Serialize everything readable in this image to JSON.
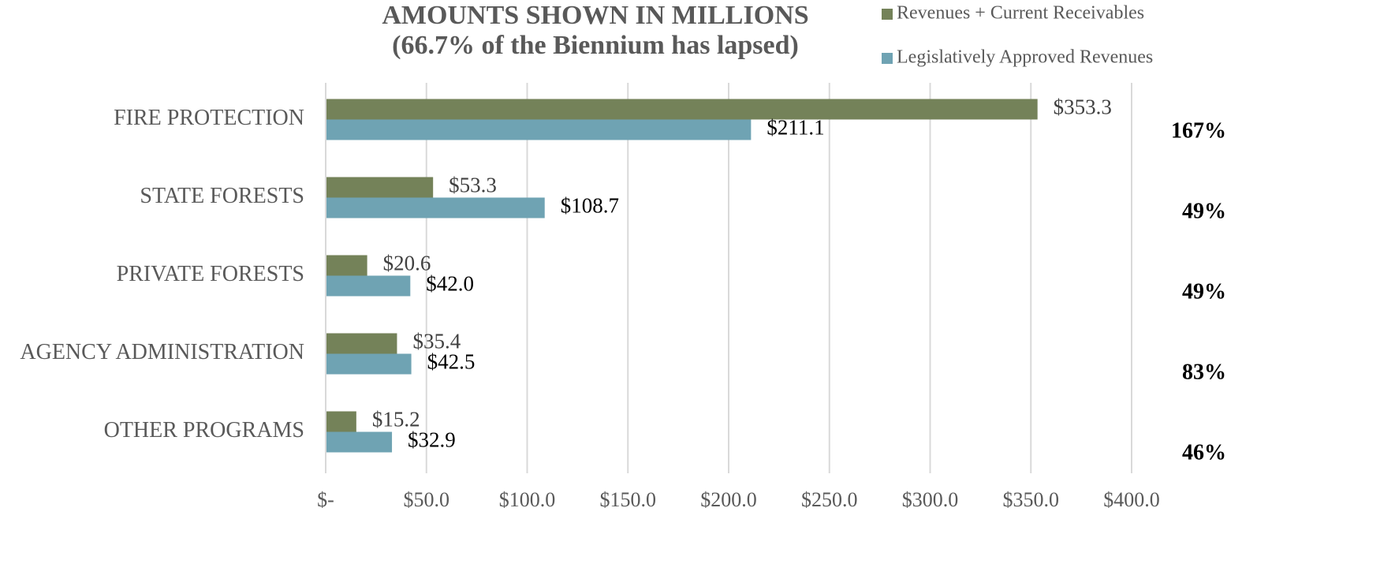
{
  "chart_data": {
    "type": "hbar",
    "title": "AMOUNTS SHOWN IN MILLIONS",
    "subtitle": "(66.7% of the Biennium has lapsed)",
    "categories": [
      "FIRE PROTECTION",
      "STATE FORESTS",
      "PRIVATE FORESTS",
      "AGENCY ADMINISTRATION",
      "OTHER PROGRAMS"
    ],
    "series": [
      {
        "name": "Revenues + Current Receivables",
        "color": "#748259",
        "values": [
          353.3,
          53.3,
          20.6,
          35.4,
          15.2
        ],
        "value_labels": [
          "$353.3",
          "$53.3",
          "$20.6",
          "$35.4",
          "$15.2"
        ]
      },
      {
        "name": "Legislatively Approved Revenues",
        "color": "#6fa3b3",
        "values": [
          211.1,
          108.7,
          42.0,
          42.5,
          32.9
        ],
        "value_labels": [
          "$211.1",
          "$108.7",
          "$42.0",
          "$42.5",
          "$32.9"
        ]
      }
    ],
    "annotations": [
      "167%",
      "49%",
      "49%",
      "83%",
      "46%"
    ],
    "xlim": [
      0,
      400
    ],
    "xticks": [
      {
        "value": 0,
        "label": "$-"
      },
      {
        "value": 50,
        "label": "$50.0"
      },
      {
        "value": 100,
        "label": "$100.0"
      },
      {
        "value": 150,
        "label": "$150.0"
      },
      {
        "value": 200,
        "label": "$200.0"
      },
      {
        "value": 250,
        "label": "$250.0"
      },
      {
        "value": 300,
        "label": "$300.0"
      },
      {
        "value": 350,
        "label": "$350.0"
      },
      {
        "value": 400,
        "label": "$400.0"
      }
    ],
    "grid": true,
    "legend": "top-right"
  }
}
